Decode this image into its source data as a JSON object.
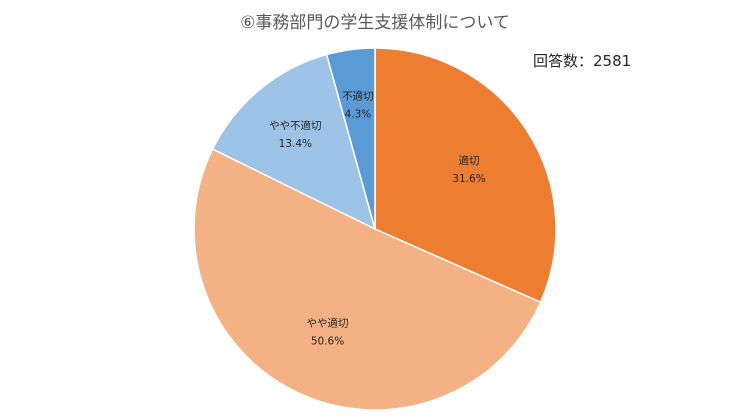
{
  "chart_data": {
    "type": "pie",
    "title": "⑥事務部門の学生支援体制について",
    "annotation": "回答数：2581",
    "categories": [
      "適切",
      "やや適切",
      "やや不適切",
      "不適切"
    ],
    "values": [
      31.6,
      50.6,
      13.4,
      4.3
    ],
    "value_labels": [
      "31.6%",
      "50.6%",
      "13.4%",
      "4.3%"
    ],
    "colors": [
      "#ED7D31",
      "#F4B183",
      "#9DC3E6",
      "#5B9BD5"
    ],
    "start_angle_deg": 0,
    "direction": "clockwise",
    "legend": "none"
  }
}
